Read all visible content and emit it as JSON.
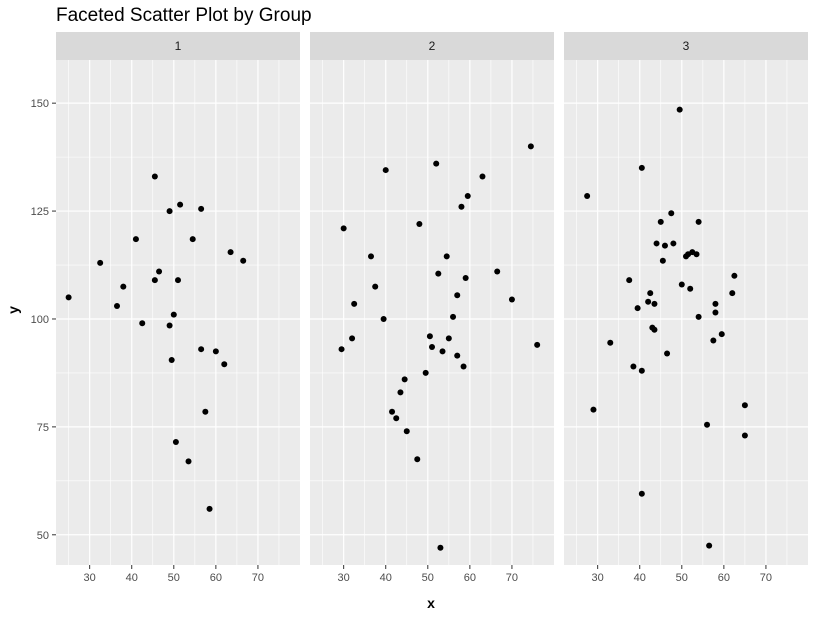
{
  "chart_data": {
    "type": "scatter",
    "title": "Faceted Scatter Plot by Group",
    "xlabel": "x",
    "ylabel": "y",
    "xlim": [
      22,
      80
    ],
    "ylim": [
      43,
      160
    ],
    "x_ticks": [
      30,
      40,
      50,
      60,
      70
    ],
    "y_ticks": [
      50,
      75,
      100,
      125,
      150
    ],
    "grid": true,
    "colors": {
      "panel_bg": "#ebebeb",
      "strip_bg": "#d9d9d9",
      "grid": "#ffffff",
      "point": "#000000"
    },
    "facets": [
      {
        "name": "1",
        "points": [
          [
            25,
            105
          ],
          [
            32.5,
            113
          ],
          [
            36.5,
            103
          ],
          [
            38,
            107.5
          ],
          [
            41,
            118.5
          ],
          [
            42.5,
            99
          ],
          [
            45.5,
            133
          ],
          [
            45.5,
            109
          ],
          [
            46.5,
            111
          ],
          [
            49,
            125
          ],
          [
            49,
            98.5
          ],
          [
            49.5,
            90.5
          ],
          [
            50,
            101
          ],
          [
            50.5,
            71.5
          ],
          [
            51,
            109
          ],
          [
            51.5,
            126.5
          ],
          [
            53.5,
            67
          ],
          [
            54.5,
            118.5
          ],
          [
            56.5,
            125.5
          ],
          [
            56.5,
            93
          ],
          [
            57.5,
            78.5
          ],
          [
            58.5,
            56
          ],
          [
            60,
            92.5
          ],
          [
            62,
            89.5
          ],
          [
            63.5,
            115.5
          ],
          [
            66.5,
            113.5
          ]
        ]
      },
      {
        "name": "2",
        "points": [
          [
            29.5,
            93
          ],
          [
            30,
            121
          ],
          [
            32,
            95.5
          ],
          [
            32.5,
            103.5
          ],
          [
            36.5,
            114.5
          ],
          [
            37.5,
            107.5
          ],
          [
            39.5,
            100
          ],
          [
            40,
            134.5
          ],
          [
            41.5,
            78.5
          ],
          [
            42.5,
            77
          ],
          [
            43.5,
            83
          ],
          [
            44.5,
            86
          ],
          [
            45,
            74
          ],
          [
            47.5,
            67.5
          ],
          [
            48,
            122
          ],
          [
            49.5,
            87.5
          ],
          [
            50.5,
            96
          ],
          [
            51,
            93.5
          ],
          [
            52,
            136
          ],
          [
            52.5,
            110.5
          ],
          [
            53,
            47
          ],
          [
            53.5,
            92.5
          ],
          [
            54.5,
            114.5
          ],
          [
            55,
            95.5
          ],
          [
            56,
            100.5
          ],
          [
            57,
            105.5
          ],
          [
            57,
            91.5
          ],
          [
            58,
            126
          ],
          [
            58.5,
            89
          ],
          [
            59,
            109.5
          ],
          [
            59.5,
            128.5
          ],
          [
            63,
            133
          ],
          [
            66.5,
            111
          ],
          [
            70,
            104.5
          ],
          [
            74.5,
            140
          ],
          [
            76,
            94
          ]
        ]
      },
      {
        "name": "3",
        "points": [
          [
            27.5,
            128.5
          ],
          [
            29,
            79
          ],
          [
            33,
            94.5
          ],
          [
            37.5,
            109
          ],
          [
            38.5,
            89
          ],
          [
            39.5,
            102.5
          ],
          [
            40.5,
            135
          ],
          [
            40.5,
            59.5
          ],
          [
            40.5,
            88
          ],
          [
            42,
            104
          ],
          [
            42.5,
            106
          ],
          [
            43,
            98
          ],
          [
            43.5,
            97.5
          ],
          [
            43.5,
            103.5
          ],
          [
            44,
            117.5
          ],
          [
            45,
            122.5
          ],
          [
            45.5,
            113.5
          ],
          [
            46,
            117
          ],
          [
            46.5,
            92
          ],
          [
            47.5,
            124.5
          ],
          [
            48,
            117.5
          ],
          [
            49.5,
            148.5
          ],
          [
            50,
            108
          ],
          [
            51,
            114.5
          ],
          [
            51.5,
            115
          ],
          [
            52,
            107
          ],
          [
            52.5,
            115.5
          ],
          [
            53.5,
            115
          ],
          [
            54,
            100.5
          ],
          [
            54,
            122.5
          ],
          [
            56,
            75.5
          ],
          [
            56.5,
            47.5
          ],
          [
            57.5,
            95
          ],
          [
            58,
            103.5
          ],
          [
            58,
            101.5
          ],
          [
            59.5,
            96.5
          ],
          [
            62,
            106
          ],
          [
            62.5,
            110
          ],
          [
            65,
            80
          ],
          [
            65,
            73
          ]
        ]
      }
    ]
  }
}
